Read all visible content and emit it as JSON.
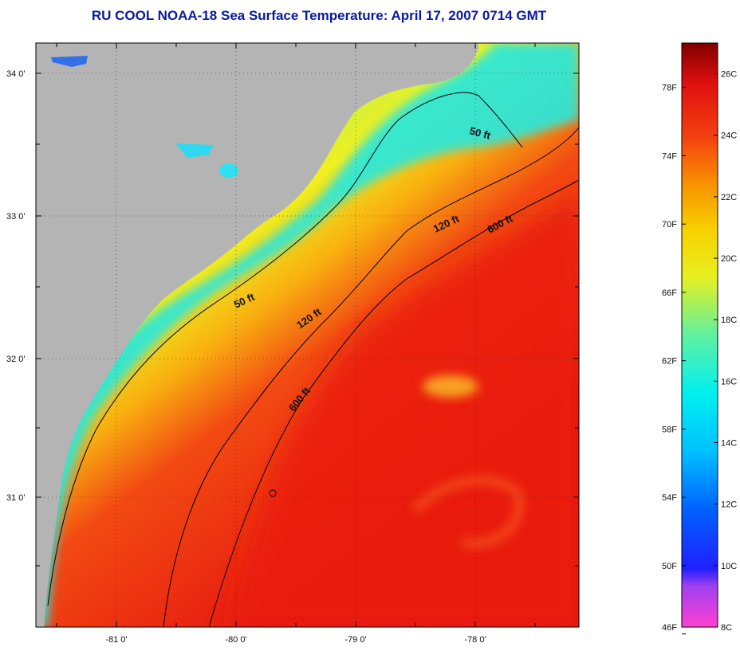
{
  "title": "RU COOL  NOAA-18  Sea Surface Temperature:  April 17, 2007 0714 GMT",
  "axes": {
    "lat_labels": [
      "34 0'",
      "33 0'",
      "32 0'",
      "31 0'"
    ],
    "lon_labels": [
      "-81 0'",
      "-80 0'",
      "-79 0'",
      "-78 0'"
    ]
  },
  "contours": {
    "labels": [
      "50 ft",
      "50 ft",
      "120 ft",
      "120 ft",
      "600 ft",
      "600 ft"
    ]
  },
  "colorbar": {
    "fahrenheit": [
      "78F",
      "74F",
      "70F",
      "66F",
      "62F",
      "58F",
      "54F",
      "50F",
      "46F"
    ],
    "celsius": [
      "26C",
      "24C",
      "22C",
      "20C",
      "18C",
      "16C",
      "14C",
      "12C",
      "10C",
      "8C"
    ],
    "range_c": [
      8,
      27
    ]
  },
  "colors": {
    "land": "#b4b4b4",
    "title": "#0a1aa0",
    "cold_shelf": "#22e6e0",
    "mid_shelf": "#c8f040",
    "warm_gulfstream": "#ee1a10"
  }
}
